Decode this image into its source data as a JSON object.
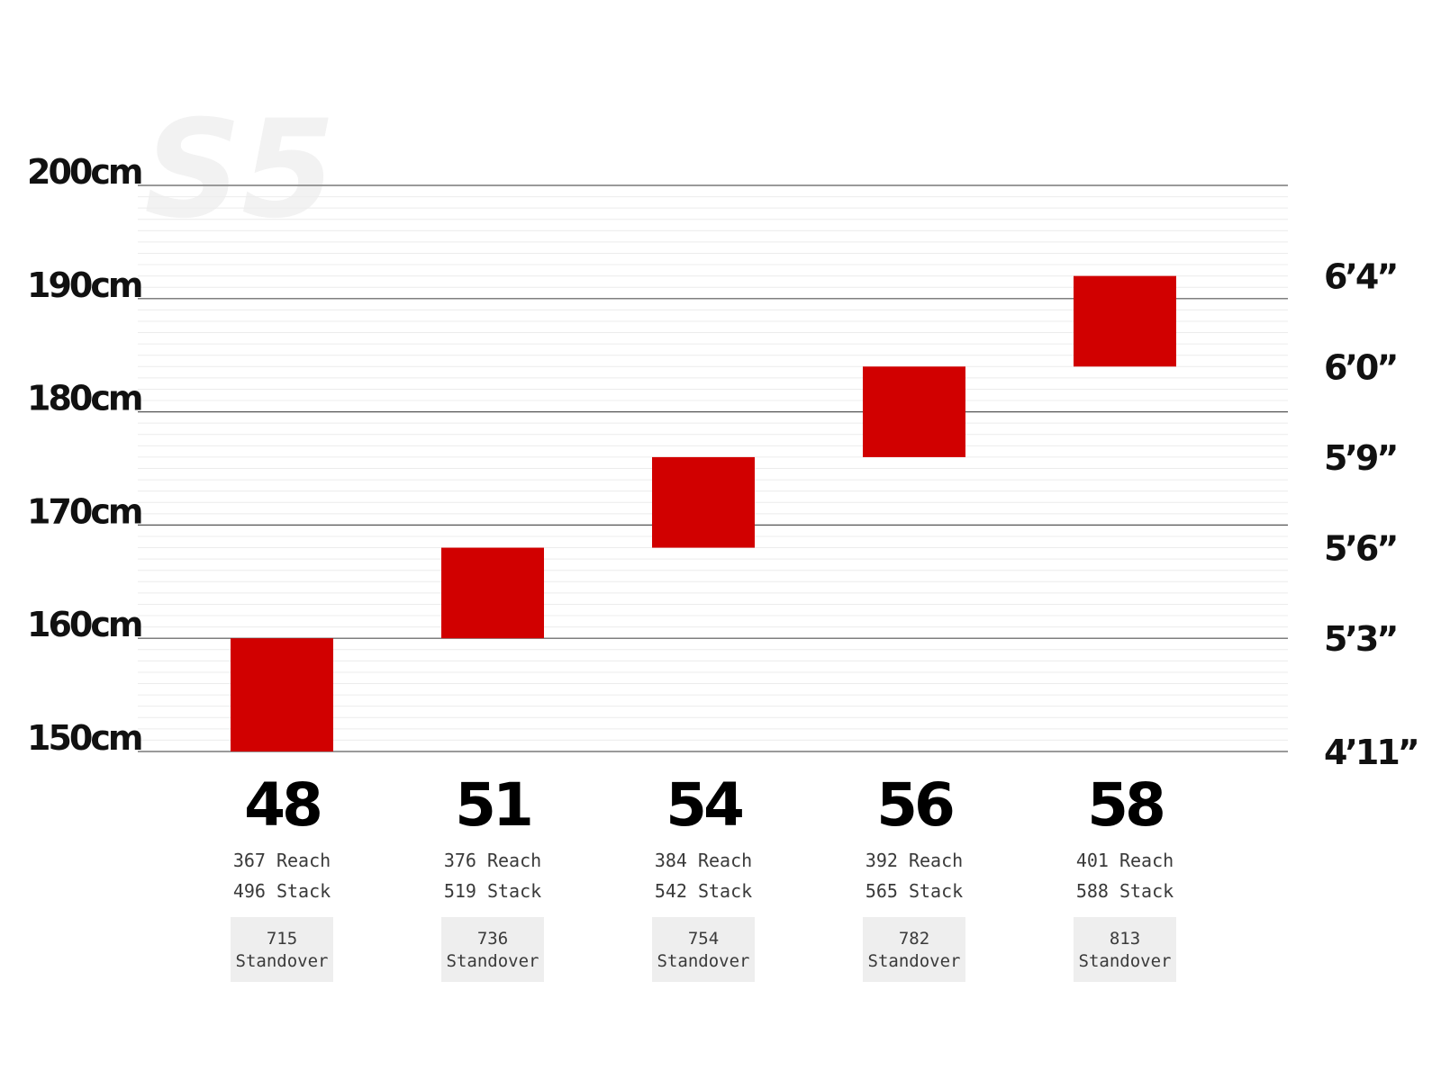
{
  "watermark": "S5",
  "chart_data": {
    "type": "bar",
    "categories": [
      "48",
      "51",
      "54",
      "56",
      "58"
    ],
    "series": [
      {
        "ranges": [
          [
            150,
            160
          ],
          [
            160,
            168
          ],
          [
            168,
            176
          ],
          [
            176,
            184
          ],
          [
            184,
            192
          ]
        ]
      }
    ],
    "ylim": [
      150,
      200
    ],
    "y_ticks": [
      "150cm",
      "160cm",
      "170cm",
      "180cm",
      "190cm",
      "200cm"
    ],
    "y_tick_values": [
      150,
      160,
      170,
      180,
      190,
      200
    ],
    "y2_ticks": [
      "4’11”",
      "5’3”",
      "5’6”",
      "5’9”",
      "6’0”",
      "6’4”"
    ],
    "y2_tick_values": [
      150,
      160,
      168,
      176,
      184,
      192
    ],
    "grid": true,
    "bar_color": "#d10000",
    "specs": [
      {
        "reach": "367 Reach",
        "stack": "496 Stack",
        "standover_value": "715",
        "standover_label": "Standover"
      },
      {
        "reach": "376 Reach",
        "stack": "519 Stack",
        "standover_value": "736",
        "standover_label": "Standover"
      },
      {
        "reach": "384 Reach",
        "stack": "542 Stack",
        "standover_value": "754",
        "standover_label": "Standover"
      },
      {
        "reach": "392 Reach",
        "stack": "565 Stack",
        "standover_value": "782",
        "standover_label": "Standover"
      },
      {
        "reach": "401 Reach",
        "stack": "588 Stack",
        "standover_value": "813",
        "standover_label": "Standover"
      }
    ]
  }
}
